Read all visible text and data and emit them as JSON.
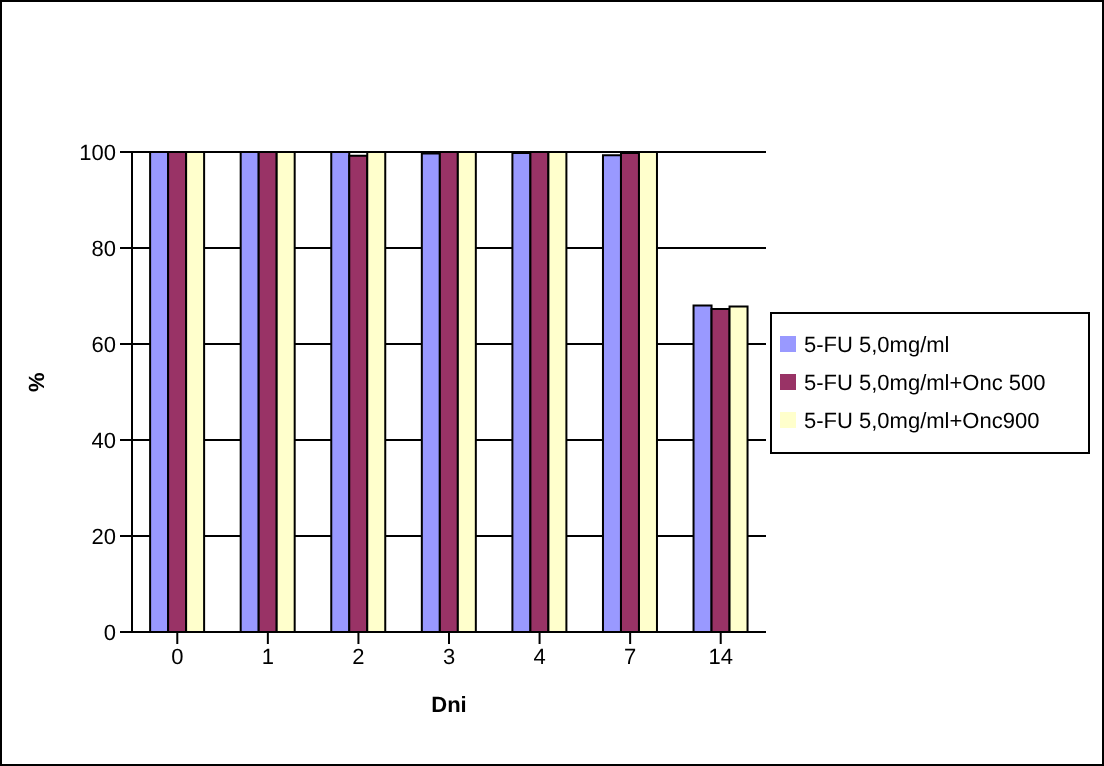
{
  "chart_data": {
    "type": "bar",
    "xlabel": "Dni",
    "ylabel": "%",
    "categories": [
      "0",
      "1",
      "2",
      "3",
      "4",
      "7",
      "14"
    ],
    "series": [
      {
        "name": "5-FU 5,0mg/ml",
        "color": "#9999ff",
        "values": [
          100,
          100,
          100,
          99.7,
          99.8,
          99.3,
          68
        ]
      },
      {
        "name": "5-FU 5,0mg/ml+Onc 500",
        "color": "#993366",
        "values": [
          100,
          100,
          99.2,
          100,
          100,
          99.8,
          67.3
        ]
      },
      {
        "name": "5-FU 5,0mg/ml+Onc900",
        "color": "#ffffcc",
        "values": [
          100,
          100,
          100,
          100,
          100,
          100,
          67.8
        ]
      }
    ],
    "ylim": [
      0,
      100
    ],
    "yticks": [
      0,
      20,
      40,
      60,
      80,
      100
    ],
    "grid": "y",
    "legend": "right"
  }
}
